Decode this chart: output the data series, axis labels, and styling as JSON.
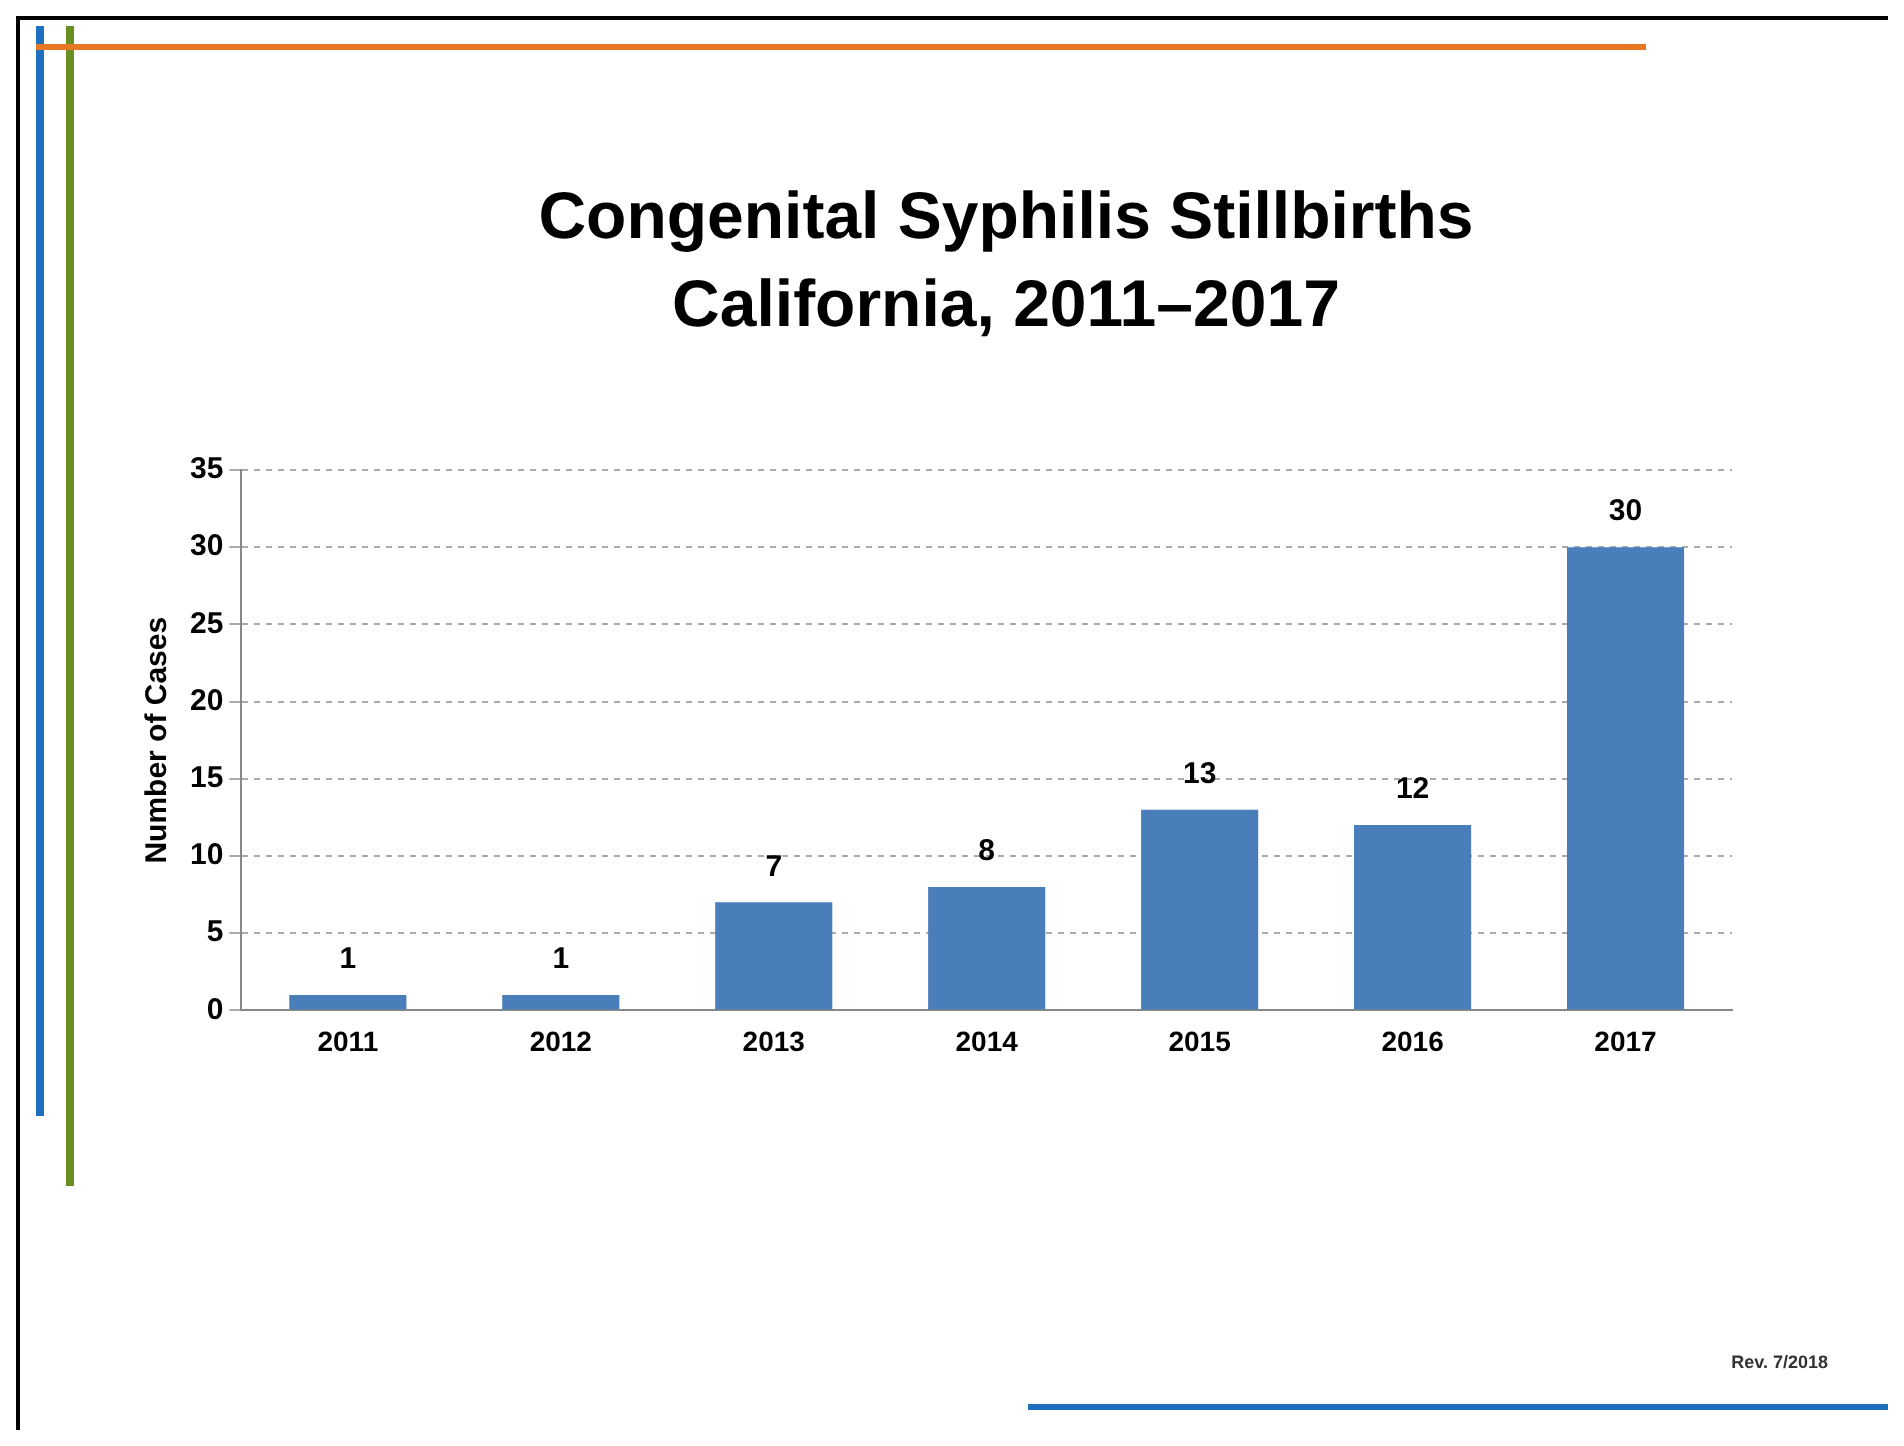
{
  "chart_data": {
    "type": "bar",
    "title": "Congenital Syphilis Stillbirths\nCalifornia, 2011–2017",
    "ylabel": "Number of Cases",
    "categories": [
      "2011",
      "2012",
      "2013",
      "2014",
      "2015",
      "2016",
      "2017"
    ],
    "values": [
      1,
      1,
      7,
      8,
      13,
      12,
      30
    ],
    "color": "#4a7ebb",
    "ylim": [
      0,
      35
    ],
    "yticks": [
      0,
      5,
      10,
      15,
      20,
      25,
      30,
      35
    ],
    "grid": "y",
    "data_labels": true,
    "annotations": [
      "Rev. 7/2018"
    ]
  }
}
